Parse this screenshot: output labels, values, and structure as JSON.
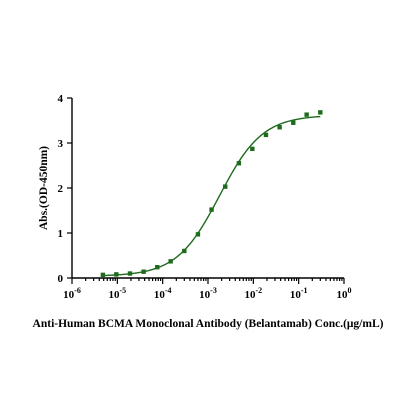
{
  "chart_data": {
    "type": "scatter",
    "title": "",
    "xlabel": "Anti-Human BCMA Monoclonal Antibody (Belantamab)  Conc.(μg/mL)",
    "ylabel": "Abs.(OD-450nm)",
    "xscale": "log",
    "xlim": [
      1e-06,
      1
    ],
    "ylim": [
      0,
      4
    ],
    "x_ticks": [
      {
        "base": "10",
        "exp": "-6"
      },
      {
        "base": "10",
        "exp": "-5"
      },
      {
        "base": "10",
        "exp": "-4"
      },
      {
        "base": "10",
        "exp": "-3"
      },
      {
        "base": "10",
        "exp": "-2"
      },
      {
        "base": "10",
        "exp": "-1"
      },
      {
        "base": "10",
        "exp": "0"
      }
    ],
    "y_ticks": [
      "0",
      "1",
      "2",
      "3",
      "4"
    ],
    "grid": false,
    "legend": "none",
    "series": [
      {
        "x": [
          4.8e-06,
          9.5e-06,
          1.9e-05,
          3.8e-05,
          7.6e-05,
          0.00015,
          0.0003,
          0.0006,
          0.0012,
          0.0024,
          0.0048,
          0.0095,
          0.019,
          0.038,
          0.076,
          0.15,
          0.3
        ],
        "y": [
          0.07,
          0.08,
          0.1,
          0.14,
          0.24,
          0.37,
          0.6,
          0.97,
          1.52,
          2.03,
          2.55,
          2.87,
          3.18,
          3.35,
          3.45,
          3.63,
          3.68
        ],
        "color": "#1e6b1e",
        "marker": "square",
        "fit": "four-parameter logistic"
      }
    ]
  }
}
